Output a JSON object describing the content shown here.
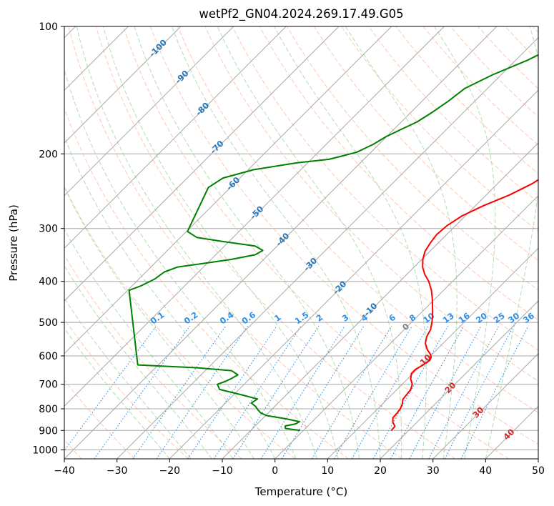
{
  "chart_data": {
    "type": "line",
    "title": "wetPf2_GN04.2024.269.17.49.G05",
    "xlabel": "Temperature (°C)",
    "ylabel": "Pressure (hPa)",
    "xlim": [
      -40,
      50
    ],
    "ylim": [
      1050,
      100
    ],
    "y_scale": "log",
    "x_ticks": [
      "−40",
      "−30",
      "−20",
      "−10",
      "0",
      "10",
      "20",
      "30",
      "40",
      "50"
    ],
    "y_ticks": [
      "100",
      "200",
      "300",
      "400",
      "500",
      "600",
      "700",
      "800",
      "900",
      "1000"
    ],
    "grid": true,
    "skew": true,
    "colors": {
      "temperature": "#ff0000",
      "dewpoint": "#008000",
      "isotherm": "#a8a8a8",
      "dry_adiabat": "#ffb49a",
      "moist_adiabat": "#9fd49f",
      "mixing_ratio": "#2e8fe6",
      "temp_label": "#2878b8",
      "warm_label": "#d62728",
      "zero_label": "#808080"
    },
    "series": [
      {
        "id": "temperature",
        "points": [
          {
            "p": 900,
            "t": 16.7
          },
          {
            "p": 880,
            "t": 16.6
          },
          {
            "p": 860,
            "t": 15.4
          },
          {
            "p": 840,
            "t": 14.6
          },
          {
            "p": 820,
            "t": 14.5
          },
          {
            "p": 800,
            "t": 14.3
          },
          {
            "p": 780,
            "t": 13.8
          },
          {
            "p": 760,
            "t": 13.0
          },
          {
            "p": 740,
            "t": 12.8
          },
          {
            "p": 720,
            "t": 12.6
          },
          {
            "p": 700,
            "t": 11.9
          },
          {
            "p": 680,
            "t": 10.6
          },
          {
            "p": 660,
            "t": 9.7
          },
          {
            "p": 645,
            "t": 9.7
          },
          {
            "p": 630,
            "t": 10.3
          },
          {
            "p": 615,
            "t": 10.7
          },
          {
            "p": 605,
            "t": 10.4
          },
          {
            "p": 595,
            "t": 9.7
          },
          {
            "p": 580,
            "t": 8.2
          },
          {
            "p": 560,
            "t": 6.6
          },
          {
            "p": 540,
            "t": 5.6
          },
          {
            "p": 520,
            "t": 5.0
          },
          {
            "p": 500,
            "t": 3.9
          },
          {
            "p": 480,
            "t": 2.6
          },
          {
            "p": 460,
            "t": 1.1
          },
          {
            "p": 440,
            "t": -0.5
          },
          {
            "p": 420,
            "t": -2.3
          },
          {
            "p": 400,
            "t": -4.5
          },
          {
            "p": 385,
            "t": -6.6
          },
          {
            "p": 370,
            "t": -8.4
          },
          {
            "p": 355,
            "t": -9.8
          },
          {
            "p": 340,
            "t": -10.9
          },
          {
            "p": 325,
            "t": -11.5
          },
          {
            "p": 310,
            "t": -11.9
          },
          {
            "p": 295,
            "t": -11.6
          },
          {
            "p": 280,
            "t": -10.6
          },
          {
            "p": 265,
            "t": -8.5
          },
          {
            "p": 250,
            "t": -5.6
          },
          {
            "p": 235,
            "t": -3.4
          },
          {
            "p": 220,
            "t": -2.1
          },
          {
            "p": 205,
            "t": -1.4
          },
          {
            "p": 190,
            "t": -1.0
          },
          {
            "p": 175,
            "t": -1.0
          },
          {
            "p": 160,
            "t": -2.8
          },
          {
            "p": 150,
            "t": -4.7
          },
          {
            "p": 140,
            "t": -6.6
          },
          {
            "p": 130,
            "t": -8.0
          },
          {
            "p": 120,
            "t": -8.6
          },
          {
            "p": 110,
            "t": -10.5
          },
          {
            "p": 100,
            "t": -12.8
          }
        ]
      },
      {
        "id": "dewpoint",
        "points": [
          {
            "p": 900,
            "t": -0.6
          },
          {
            "p": 890,
            "t": -3.8
          },
          {
            "p": 878,
            "t": -4.3
          },
          {
            "p": 868,
            "t": -2.7
          },
          {
            "p": 858,
            "t": -2.4
          },
          {
            "p": 845,
            "t": -5.4
          },
          {
            "p": 830,
            "t": -9.8
          },
          {
            "p": 818,
            "t": -11.4
          },
          {
            "p": 805,
            "t": -12.5
          },
          {
            "p": 790,
            "t": -13.6
          },
          {
            "p": 775,
            "t": -15.1
          },
          {
            "p": 758,
            "t": -14.7
          },
          {
            "p": 740,
            "t": -18.8
          },
          {
            "p": 720,
            "t": -23.7
          },
          {
            "p": 700,
            "t": -25.1
          },
          {
            "p": 690,
            "t": -24.2
          },
          {
            "p": 680,
            "t": -23.6
          },
          {
            "p": 665,
            "t": -23.0
          },
          {
            "p": 650,
            "t": -25.0
          },
          {
            "p": 640,
            "t": -32.1
          },
          {
            "p": 630,
            "t": -43.9
          },
          {
            "p": 420,
            "t": -59.7
          },
          {
            "p": 410,
            "t": -58.3
          },
          {
            "p": 395,
            "t": -57.0
          },
          {
            "p": 380,
            "t": -56.5
          },
          {
            "p": 370,
            "t": -54.9
          },
          {
            "p": 362,
            "t": -50.2
          },
          {
            "p": 355,
            "t": -46.2
          },
          {
            "p": 346,
            "t": -42.5
          },
          {
            "p": 338,
            "t": -41.9
          },
          {
            "p": 330,
            "t": -44.2
          },
          {
            "p": 322,
            "t": -51.2
          },
          {
            "p": 315,
            "t": -56.9
          },
          {
            "p": 305,
            "t": -59.8
          },
          {
            "p": 240,
            "t": -64.2
          },
          {
            "p": 228,
            "t": -63.2
          },
          {
            "p": 218,
            "t": -59.0
          },
          {
            "p": 210,
            "t": -52.1
          },
          {
            "p": 206,
            "t": -46.6
          },
          {
            "p": 202,
            "t": -44.6
          },
          {
            "p": 198,
            "t": -42.7
          },
          {
            "p": 190,
            "t": -41.1
          },
          {
            "p": 182,
            "t": -40.1
          },
          {
            "p": 175,
            "t": -38.6
          },
          {
            "p": 168,
            "t": -37.0
          },
          {
            "p": 160,
            "t": -36.0
          },
          {
            "p": 150,
            "t": -35.0
          },
          {
            "p": 140,
            "t": -34.3
          },
          {
            "p": 130,
            "t": -31.6
          },
          {
            "p": 120,
            "t": -27.7
          },
          {
            "p": 110,
            "t": -24.7
          },
          {
            "p": 100,
            "t": -23.0
          }
        ]
      }
    ],
    "isotherm_labels": [
      "-100",
      "-90",
      "-80",
      "-70",
      "-60",
      "-50",
      "-40",
      "-30",
      "-20",
      "-10"
    ],
    "mixing_ratio_labels": [
      "0.1",
      "0.2",
      "0.4",
      "0.6",
      "1",
      "1.5",
      "2",
      "3",
      "4",
      "6",
      "8",
      "10",
      "13",
      "16",
      "20",
      "25",
      "30",
      "36"
    ],
    "warm_labels": [
      "0",
      "10",
      "20",
      "30",
      "40"
    ]
  }
}
